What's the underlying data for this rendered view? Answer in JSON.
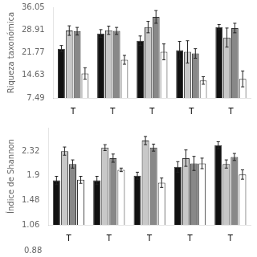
{
  "chart_data": [
    {
      "type": "bar",
      "ylabel": "Riqueza taxonómica",
      "categories": [
        "T",
        "T",
        "T",
        "T",
        "T"
      ],
      "series": [
        {
          "color": "#111111",
          "values": [
            23.0,
            27.8,
            25.5,
            22.5,
            29.8
          ],
          "errors": [
            1.0,
            1.2,
            1.5,
            2.8,
            0.8
          ]
        },
        {
          "color": "#c8c8c8",
          "values": [
            28.7,
            28.8,
            29.8,
            22.0,
            26.5
          ],
          "errors": [
            1.5,
            1.3,
            1.8,
            3.5,
            3.0
          ]
        },
        {
          "color": "#888888",
          "values": [
            28.5,
            28.6,
            33.0,
            21.5,
            29.5
          ],
          "errors": [
            1.2,
            1.1,
            2.0,
            1.5,
            1.5
          ]
        },
        {
          "color": "#ffffff",
          "values": [
            15.2,
            19.5,
            22.0,
            13.0,
            13.5
          ],
          "errors": [
            1.8,
            1.4,
            2.5,
            1.2,
            2.5
          ]
        }
      ],
      "ylim": [
        7.49,
        36.05
      ],
      "yticks": [
        7.49,
        14.63,
        21.77,
        28.91,
        36.05
      ],
      "grid": false
    },
    {
      "type": "bar",
      "ylabel": "Índice de Shannon",
      "categories": [
        "T",
        "T",
        "T",
        "T",
        "T"
      ],
      "series": [
        {
          "color": "#111111",
          "values": [
            1.82,
            1.82,
            1.9,
            2.05,
            2.42
          ],
          "errors": [
            0.07,
            0.07,
            0.06,
            0.09,
            0.06
          ]
        },
        {
          "color": "#c8c8c8",
          "values": [
            2.32,
            2.38,
            2.5,
            2.2,
            2.1
          ],
          "errors": [
            0.07,
            0.05,
            0.07,
            0.14,
            0.07
          ]
        },
        {
          "color": "#888888",
          "values": [
            2.1,
            2.2,
            2.38,
            2.11,
            2.22
          ],
          "errors": [
            0.07,
            0.07,
            0.06,
            0.12,
            0.06
          ]
        },
        {
          "color": "#ffffff",
          "values": [
            1.83,
            2.0,
            1.78,
            2.11,
            1.92
          ],
          "errors": [
            0.06,
            0.03,
            0.08,
            0.09,
            0.08
          ]
        }
      ],
      "ylim": [
        1.06,
        2.72
      ],
      "yticks": [
        1.06,
        1.48,
        1.9,
        2.32
      ],
      "grid": false,
      "annotations": [
        "0.88"
      ]
    }
  ]
}
